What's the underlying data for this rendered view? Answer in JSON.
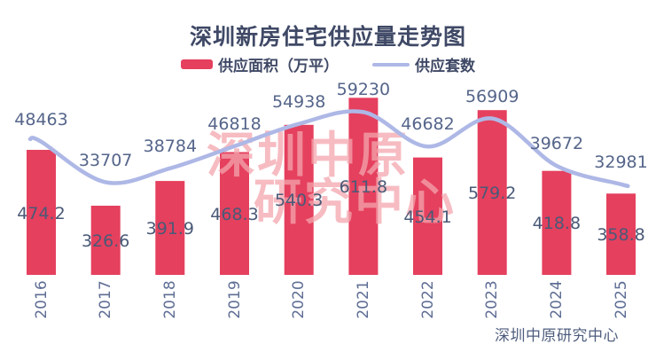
{
  "title": "深圳新房住宅供应量走势图",
  "legend": {
    "area_label": "供应面积（万平）",
    "units_label": "供应套数"
  },
  "watermark": {
    "line1": "深圳中原",
    "line2": "研究中心"
  },
  "footer": "深圳中原研究中心",
  "colors": {
    "bar": "#e5405e",
    "line": "#aeb8e6",
    "title_text": "#3f4966",
    "bar_value_text": "#4a5977",
    "line_value_text": "#55658a",
    "axis_text": "#5e6d94",
    "watermark_pink": "#f3a6ae"
  },
  "chart_data": {
    "type": "bar",
    "subtype": "bar+line combo",
    "title": "深圳新房住宅供应量走势图",
    "categories": [
      "2016",
      "2017",
      "2018",
      "2019",
      "2020",
      "2021",
      "2022",
      "2023",
      "2024",
      "2025"
    ],
    "series": [
      {
        "name": "供应面积（万平）",
        "type": "bar",
        "color": "#e5405e",
        "values": [
          474.2,
          326.6,
          391.9,
          468.3,
          540.3,
          611.8,
          454.1,
          579.2,
          418.8,
          358.8
        ]
      },
      {
        "name": "供应套数",
        "type": "line",
        "color": "#aeb8e6",
        "smooth": true,
        "values": [
          48463,
          33707,
          38784,
          46818,
          54938,
          59230,
          46682,
          56909,
          39672,
          32981
        ]
      }
    ],
    "xlabel": "",
    "ylabel": "",
    "grid": false,
    "axes_visible": false,
    "legend_position": "top",
    "x_label_rotation": 90,
    "data_labels": "all points labeled",
    "source_note": "深圳中原研究中心"
  }
}
